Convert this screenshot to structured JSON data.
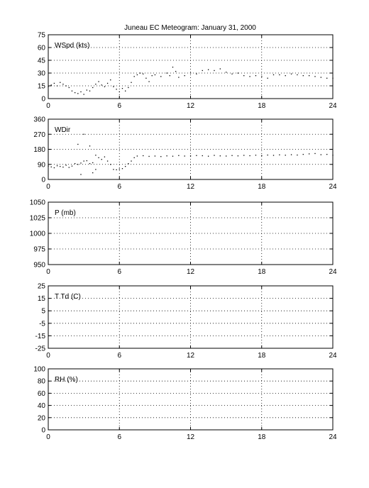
{
  "title": "Juneau EC Meteogram:   January 31, 2000",
  "colors": {
    "axis": "#000000",
    "grid": "#000000",
    "marker": "#000000",
    "background": "#ffffff"
  },
  "chart_data": [
    {
      "type": "scatter",
      "label": "WSpd (kts)",
      "xlim": [
        0,
        24
      ],
      "ylim": [
        0,
        75
      ],
      "xticks": [
        0,
        6,
        12,
        18,
        24
      ],
      "yticks": [
        0,
        15,
        30,
        45,
        60,
        75
      ],
      "grid": true,
      "series": [
        {
          "values": [
            [
              0,
              14
            ],
            [
              0.25,
              16
            ],
            [
              0.5,
              18
            ],
            [
              0.75,
              15
            ],
            [
              1,
              19
            ],
            [
              1.25,
              17
            ],
            [
              1.5,
              15
            ],
            [
              1.75,
              13
            ],
            [
              2,
              9
            ],
            [
              2.25,
              7
            ],
            [
              2.5,
              6
            ],
            [
              2.75,
              8
            ],
            [
              3,
              5
            ],
            [
              3.25,
              10
            ],
            [
              3.5,
              9
            ],
            [
              3.75,
              13
            ],
            [
              4,
              17
            ],
            [
              4.25,
              20
            ],
            [
              4.5,
              16
            ],
            [
              4.75,
              14
            ],
            [
              5,
              18
            ],
            [
              5.25,
              22
            ],
            [
              5.5,
              14
            ],
            [
              5.75,
              11
            ],
            [
              6,
              8
            ],
            [
              6.25,
              12
            ],
            [
              6.5,
              9
            ],
            [
              6.75,
              13
            ],
            [
              7,
              19
            ],
            [
              7.25,
              26
            ],
            [
              7.5,
              28
            ],
            [
              7.75,
              30
            ],
            [
              8,
              29
            ],
            [
              8.25,
              24
            ],
            [
              8.5,
              20
            ],
            [
              8.75,
              27
            ],
            [
              9,
              28
            ],
            [
              9.5,
              26
            ],
            [
              10,
              30
            ],
            [
              10.25,
              27
            ],
            [
              10.5,
              37
            ],
            [
              10.75,
              32
            ],
            [
              11,
              25
            ],
            [
              11.5,
              27
            ],
            [
              12,
              30
            ],
            [
              12.5,
              29
            ],
            [
              13,
              33
            ],
            [
              13.5,
              34
            ],
            [
              14,
              33
            ],
            [
              14.5,
              35
            ],
            [
              15,
              31
            ],
            [
              15.5,
              29
            ],
            [
              16,
              30
            ],
            [
              16.5,
              27
            ],
            [
              17,
              26
            ],
            [
              17.5,
              27
            ],
            [
              18,
              26
            ],
            [
              18.5,
              24
            ],
            [
              19,
              28
            ],
            [
              19.5,
              28
            ],
            [
              20,
              27
            ],
            [
              20.5,
              29
            ],
            [
              21,
              28
            ],
            [
              21.5,
              27
            ],
            [
              22,
              27
            ],
            [
              22.5,
              26
            ],
            [
              23,
              25
            ],
            [
              23.5,
              24
            ],
            [
              24,
              24
            ]
          ]
        }
      ]
    },
    {
      "type": "scatter",
      "label": "WDir",
      "xlim": [
        0,
        24
      ],
      "ylim": [
        0,
        360
      ],
      "xticks": [
        0,
        6,
        12,
        18,
        24
      ],
      "yticks": [
        0,
        90,
        180,
        270,
        360
      ],
      "grid": true,
      "series": [
        {
          "values": [
            [
              0,
              80
            ],
            [
              0.25,
              75
            ],
            [
              0.5,
              70
            ],
            [
              0.75,
              82
            ],
            [
              1,
              78
            ],
            [
              1.25,
              74
            ],
            [
              1.5,
              85
            ],
            [
              1.75,
              72
            ],
            [
              2,
              80
            ],
            [
              2.25,
              95
            ],
            [
              2.5,
              90
            ],
            [
              2.75,
              98
            ],
            [
              3,
              110
            ],
            [
              3.25,
              112
            ],
            [
              3.5,
              95
            ],
            [
              3.75,
              100
            ],
            [
              4,
              145
            ],
            [
              4.25,
              130
            ],
            [
              4.5,
              120
            ],
            [
              4.75,
              135
            ],
            [
              5,
              110
            ],
            [
              5.25,
              90
            ],
            [
              5.5,
              60
            ],
            [
              5.75,
              58
            ],
            [
              6,
              62
            ],
            [
              6.25,
              65
            ],
            [
              6.5,
              78
            ],
            [
              6.75,
              95
            ],
            [
              7,
              110
            ],
            [
              7.25,
              130
            ],
            [
              7.5,
              140
            ],
            [
              8,
              142
            ],
            [
              8.5,
              138
            ],
            [
              9,
              140
            ],
            [
              9.5,
              137
            ],
            [
              10,
              141
            ],
            [
              10.5,
              139
            ],
            [
              11,
              143
            ],
            [
              11.5,
              140
            ],
            [
              12,
              141
            ],
            [
              12.5,
              143
            ],
            [
              13,
              142
            ],
            [
              13.5,
              139
            ],
            [
              14,
              144
            ],
            [
              14.5,
              141
            ],
            [
              15,
              140
            ],
            [
              15.5,
              143
            ],
            [
              16,
              141
            ],
            [
              16.5,
              144
            ],
            [
              17,
              142
            ],
            [
              17.5,
              145
            ],
            [
              18,
              143
            ],
            [
              18.5,
              146
            ],
            [
              19,
              144
            ],
            [
              19.5,
              147
            ],
            [
              20,
              145
            ],
            [
              20.5,
              148
            ],
            [
              21,
              146
            ],
            [
              21.5,
              150
            ],
            [
              22,
              153
            ],
            [
              22.5,
              155
            ],
            [
              23,
              148
            ],
            [
              23.5,
              150
            ],
            [
              24,
              145
            ],
            [
              3,
              270
            ],
            [
              3.5,
              200
            ],
            [
              2.5,
              210
            ],
            [
              4,
              60
            ],
            [
              3.75,
              40
            ],
            [
              2.75,
              30
            ]
          ]
        }
      ]
    },
    {
      "type": "scatter",
      "label": "P (mb)",
      "xlim": [
        0,
        24
      ],
      "ylim": [
        950,
        1050
      ],
      "xticks": [
        0,
        6,
        12,
        18,
        24
      ],
      "yticks": [
        950,
        975,
        1000,
        1025,
        1050
      ],
      "grid": true,
      "series": []
    },
    {
      "type": "scatter",
      "label": "T Td (C)",
      "xlim": [
        0,
        24
      ],
      "ylim": [
        -25,
        25
      ],
      "xticks": [
        0,
        6,
        12,
        18,
        24
      ],
      "yticks": [
        -25,
        -15,
        -5,
        5,
        15,
        25
      ],
      "ytick_labels": [
        "-25",
        "-15",
        "-5",
        "5",
        "15",
        "25"
      ],
      "grid": true,
      "series": []
    },
    {
      "type": "scatter",
      "label": "RH (%)",
      "xlim": [
        0,
        24
      ],
      "ylim": [
        0,
        100
      ],
      "xticks": [
        0,
        6,
        12,
        18,
        24
      ],
      "yticks": [
        0,
        20,
        40,
        60,
        80,
        100
      ],
      "grid": true,
      "series": []
    }
  ]
}
